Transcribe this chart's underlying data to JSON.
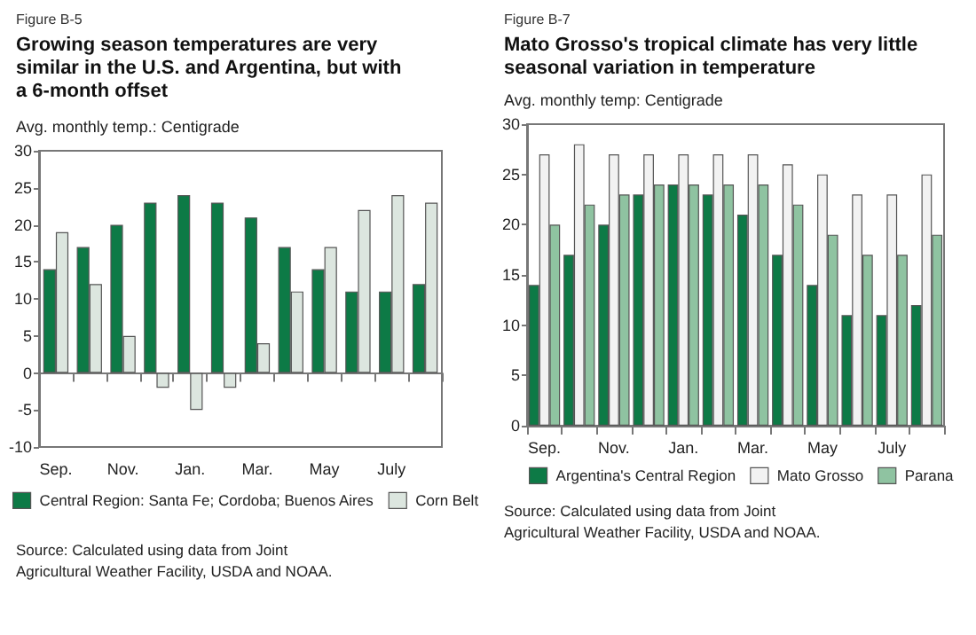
{
  "chart_data": [
    {
      "type": "bar",
      "title": "Growing season temperatures are very similar in the U.S. and Argentina, but with a 6-month offset",
      "ylabel": "Avg. monthly temp.: Centigrade",
      "annotations": [
        "Figure B-5",
        "Source: Calculated using data from Joint Agricultural Weather Facility, USDA and NOAA."
      ],
      "categories": [
        "Sep.",
        null,
        "Nov.",
        null,
        "Jan.",
        null,
        "Mar.",
        null,
        "May",
        null,
        "July",
        null
      ],
      "series": [
        {
          "name": "Central Region: Santa Fe; Cordoba; Buenos Aires",
          "color": "#0d7a46",
          "values": [
            14,
            17,
            20,
            23,
            24,
            23,
            21,
            17,
            14,
            11,
            11,
            12
          ]
        },
        {
          "name": "Corn Belt",
          "color": "#dce6df",
          "values": [
            19,
            12,
            5,
            -2,
            -5,
            -2,
            4,
            11,
            17,
            22,
            24,
            23
          ]
        }
      ],
      "ylim": [
        -10,
        30
      ],
      "yticks": [
        -10,
        -5,
        0,
        5,
        10,
        15,
        20,
        25,
        30
      ],
      "legend": "bottom"
    },
    {
      "type": "bar",
      "title": "Mato Grosso's tropical climate has very little seasonal variation in temperature",
      "ylabel": "Avg. monthly temp: Centigrade",
      "annotations": [
        "Figure B-7",
        "Source: Calculated using data from Joint Agricultural Weather Facility, USDA and NOAA."
      ],
      "categories": [
        "Sep.",
        null,
        "Nov.",
        null,
        "Jan.",
        null,
        "Mar.",
        null,
        "May",
        null,
        "July",
        null
      ],
      "series": [
        {
          "name": "Argentina's Central Region",
          "color": "#0d7a46",
          "values": [
            14,
            17,
            20,
            23,
            24,
            23,
            21,
            17,
            14,
            11,
            11,
            12
          ]
        },
        {
          "name": "Mato Grosso",
          "color": "#f2f2f2",
          "values": [
            27,
            28,
            27,
            27,
            27,
            27,
            27,
            26,
            25,
            23,
            23,
            25
          ]
        },
        {
          "name": "Parana",
          "color": "#8fc3a1",
          "values": [
            20,
            22,
            23,
            24,
            24,
            24,
            24,
            22,
            19,
            17,
            17,
            19
          ]
        }
      ],
      "ylim": [
        0,
        30
      ],
      "yticks": [
        0,
        5,
        10,
        15,
        20,
        25,
        30
      ],
      "grid": false,
      "legend": "bottom"
    }
  ]
}
